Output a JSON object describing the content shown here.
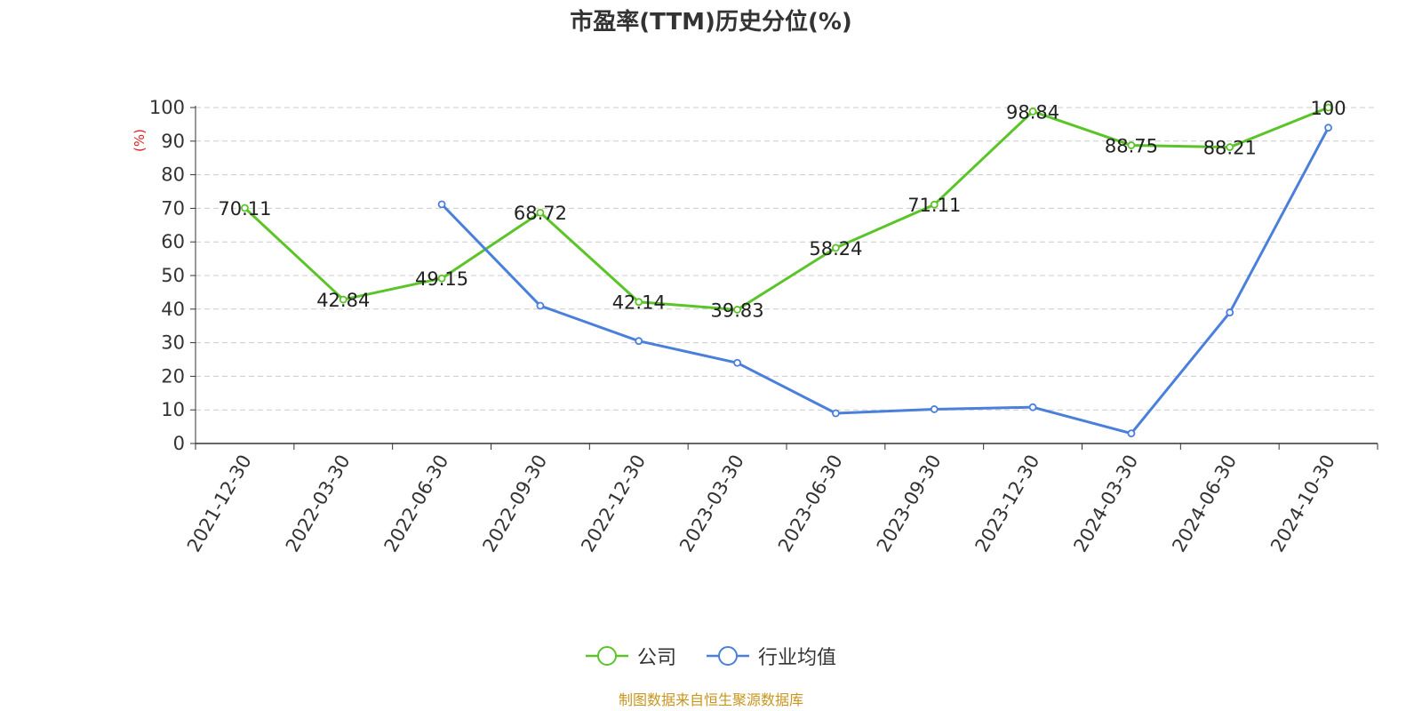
{
  "title": "市盈率(TTM)历史分位(%)",
  "source": "制图数据来自恒生聚源数据库",
  "chart_data": {
    "type": "line",
    "title": "市盈率(TTM)历史分位(%)",
    "ylabel": "(%)",
    "ylim": [
      0,
      100
    ],
    "yticks": [
      0,
      10,
      20,
      30,
      40,
      50,
      60,
      70,
      80,
      90,
      100
    ],
    "grid": true,
    "legend_position": "bottom",
    "categories": [
      "2021-12-30",
      "2022-03-30",
      "2022-06-30",
      "2022-09-30",
      "2022-12-30",
      "2023-03-30",
      "2023-06-30",
      "2023-09-30",
      "2023-12-30",
      "2024-03-30",
      "2024-06-30",
      "2024-10-30"
    ],
    "series": [
      {
        "name": "公司",
        "color": "#5bc429",
        "show_labels": true,
        "values": [
          70.11,
          42.84,
          49.15,
          68.72,
          42.14,
          39.83,
          58.24,
          71.11,
          98.84,
          88.75,
          88.21,
          100
        ]
      },
      {
        "name": "行业均值",
        "color": "#4a7fdc",
        "show_labels": false,
        "values": [
          null,
          null,
          71.2,
          41.0,
          30.5,
          24.0,
          9.0,
          10.2,
          10.8,
          3.0,
          39.0,
          94.0
        ]
      }
    ]
  }
}
